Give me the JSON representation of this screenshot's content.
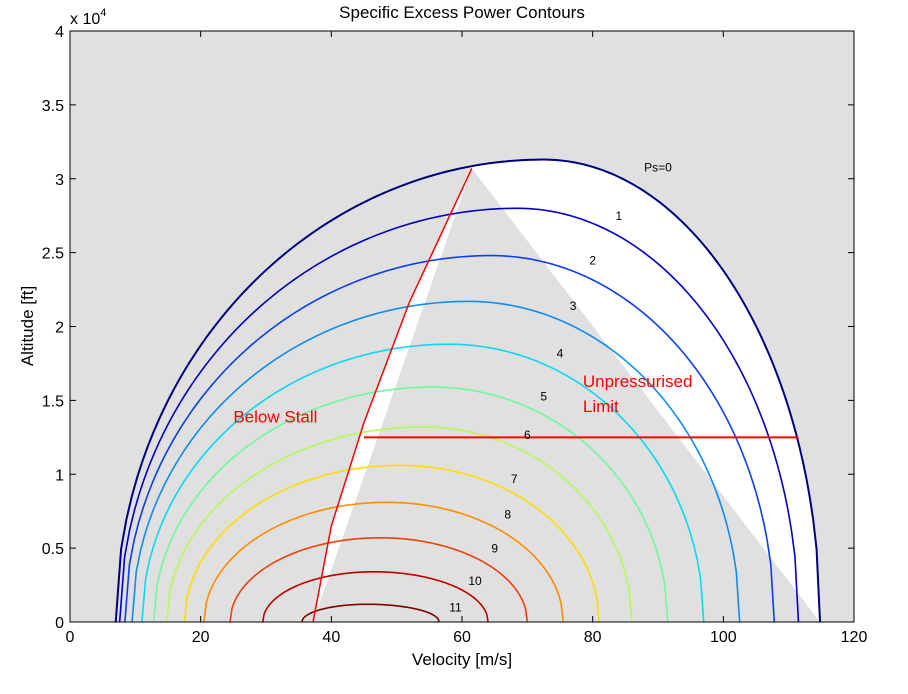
{
  "chart_data": {
    "type": "line",
    "title": "Specific Excess Power Contours",
    "xlabel": "Velocity [m/s]",
    "ylabel": "Altitude [ft]",
    "xlim": [
      0,
      120
    ],
    "ylim": [
      0,
      40000
    ],
    "x_ticks": [
      0,
      20,
      40,
      60,
      80,
      100,
      120
    ],
    "y_ticks": [
      0,
      0.5,
      1,
      1.5,
      2,
      2.5,
      3,
      3.5,
      4
    ],
    "y_tick_labels": [
      "0",
      "0.5",
      "1",
      "1.5",
      "2",
      "2.5",
      "3",
      "3.5",
      "4"
    ],
    "y_multiplier": "x 10",
    "y_multiplier_exponent": "4",
    "grid": false,
    "contours": [
      {
        "label": "Ps=0",
        "ps": 0,
        "v_min": 7,
        "v_max": 114.8,
        "v_peak": 72.5,
        "h_peak": 31300,
        "color": "#000080",
        "label_v": 90,
        "label_h": 30500
      },
      {
        "label": "1",
        "ps": 1,
        "v_min": 7.6,
        "v_max": 111.5,
        "v_peak": 68.5,
        "h_peak": 28000,
        "color": "#0000c4",
        "label_v": 84,
        "label_h": 27200
      },
      {
        "label": "2",
        "ps": 2,
        "v_min": 8.4,
        "v_max": 107.8,
        "v_peak": 64.5,
        "h_peak": 24800,
        "color": "#0a3ef0",
        "label_v": 80,
        "label_h": 24200
      },
      {
        "label": "3",
        "ps": 3,
        "v_min": 9.5,
        "v_max": 102.5,
        "v_peak": 61,
        "h_peak": 21700,
        "color": "#0f8cf0",
        "label_v": 77,
        "label_h": 21100
      },
      {
        "label": "4",
        "ps": 4,
        "v_min": 11,
        "v_max": 97,
        "v_peak": 58,
        "h_peak": 18800,
        "color": "#08d8f5",
        "label_v": 75,
        "label_h": 17900
      },
      {
        "label": "5",
        "ps": 5,
        "v_min": 12.8,
        "v_max": 91.5,
        "v_peak": 55.5,
        "h_peak": 15900,
        "color": "#70f8a0",
        "label_v": 72.5,
        "label_h": 15000
      },
      {
        "label": "6",
        "ps": 6,
        "v_min": 14.8,
        "v_max": 86,
        "v_peak": 54,
        "h_peak": 13200,
        "color": "#b8f858",
        "label_v": 70,
        "label_h": 12400
      },
      {
        "label": "7",
        "ps": 7,
        "v_min": 17.5,
        "v_max": 81,
        "v_peak": 50.5,
        "h_peak": 10600,
        "color": "#ffdc00",
        "label_v": 68,
        "label_h": 9400
      },
      {
        "label": "8",
        "ps": 8,
        "v_min": 20.5,
        "v_max": 75.5,
        "v_peak": 48.5,
        "h_peak": 8100,
        "color": "#ff8c00",
        "label_v": 67,
        "label_h": 7000
      },
      {
        "label": "9",
        "ps": 9,
        "v_min": 24.5,
        "v_max": 70,
        "v_peak": 47.5,
        "h_peak": 5700,
        "color": "#f04008",
        "label_v": 65,
        "label_h": 4700
      },
      {
        "label": "10",
        "ps": 10,
        "v_min": 29.5,
        "v_max": 64,
        "v_peak": 46.5,
        "h_peak": 3400,
        "color": "#c00000",
        "label_v": 62,
        "label_h": 2500
      },
      {
        "label": "11",
        "ps": 11,
        "v_min": 35.5,
        "v_max": 56.5,
        "v_peak": 45.5,
        "h_peak": 1200,
        "color": "#800000",
        "label_v": 59,
        "label_h": 700
      }
    ],
    "stall_line": {
      "color": "#ff0000",
      "points": [
        [
          37.2,
          0
        ],
        [
          40,
          6500
        ],
        [
          45,
          13500
        ],
        [
          52,
          21700
        ],
        [
          61.5,
          30700
        ]
      ]
    },
    "unpressurised_limit": {
      "color": "#ff0000",
      "altitude": 12500,
      "v_start": 45,
      "v_end": 111.5
    },
    "annotations": [
      {
        "text": "Below Stall",
        "v": 25,
        "h": 13500
      },
      {
        "text": "Unpressurised",
        "v": 78.5,
        "h": 15900
      },
      {
        "text": "Limit",
        "v": 78.5,
        "h": 14200
      }
    ],
    "colors": {
      "plot_background": "#e0e0e0",
      "feasible_region": "#ffffff",
      "axes": "#000000"
    }
  }
}
